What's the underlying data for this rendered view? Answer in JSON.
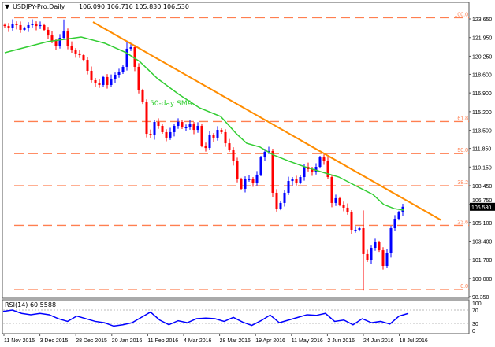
{
  "header": {
    "symbol": "USDJPY-Pro,Daily",
    "ohlc_text": "106.090 106.716 105.830 106.530"
  },
  "colors": {
    "bull": "#0000ff",
    "bear": "#ff0000",
    "fib": "#ff7f50",
    "trendline": "#ff8c00",
    "sma": "#32cd32",
    "rsi": "#0000ff"
  },
  "chart_data": [
    {
      "type": "candlestick",
      "title": "USDJPY-Pro,Daily",
      "current_price": "106.530",
      "ylim": [
        98.35,
        123.65
      ],
      "price_ticks": [
        "123.650",
        "121.950",
        "120.250",
        "118.600",
        "116.900",
        "115.200",
        "113.500",
        "111.850",
        "110.150",
        "108.450",
        "106.750",
        "105.100",
        "103.400",
        "101.700",
        "100.000",
        "98.350"
      ],
      "date_labels": [
        "11 Nov 2015",
        "3 Dec 2015",
        "28 Dec 2015",
        "20 Jan 2016",
        "11 Feb 2016",
        "4 Mar 2016",
        "28 Mar 2016",
        "19 Apr 2016",
        "11 May 2016",
        "2 Jun 2016",
        "24 Jun 2016",
        "18 Jul 2016"
      ],
      "closes": [
        123.0,
        122.79,
        123.22,
        123.08,
        122.65,
        122.79,
        123.08,
        123.22,
        123.0,
        123.08,
        122.65,
        122.14,
        121.64,
        121.21,
        121.93,
        122.5,
        121.21,
        120.78,
        120.5,
        120.35,
        119.92,
        118.92,
        118.06,
        117.84,
        117.63,
        118.35,
        117.63,
        118.2,
        118.56,
        118.78,
        119.28,
        120.93,
        121.07,
        119.28,
        117.13,
        116.05,
        113.18,
        113.04,
        114.26,
        113.9,
        113.33,
        112.83,
        113.33,
        113.9,
        114.26,
        113.76,
        113.76,
        114.04,
        113.54,
        113.9,
        112.11,
        111.89,
        113.04,
        112.83,
        113.54,
        113.33,
        112.32,
        111.75,
        110.68,
        109.03,
        108.17,
        109.03,
        109.03,
        108.74,
        109.46,
        111.03,
        111.54,
        111.61,
        107.81,
        106.37,
        106.88,
        107.81,
        108.88,
        109.03,
        108.74,
        109.24,
        110.17,
        109.96,
        109.74,
        110.17,
        111.03,
        110.68,
        109.24,
        106.88,
        107.31,
        106.73,
        106.45,
        106.02,
        104.44,
        104.44,
        104.58,
        102.22,
        101.71,
        102.79,
        103.29,
        102.57,
        101.14,
        102.29,
        104.58,
        105.44,
        106.02,
        106.53
      ],
      "wick_overrides": [
        {
          "index": 15,
          "high": 123.6
        },
        {
          "index": 31,
          "high": 121.6
        },
        {
          "index": 91,
          "high": 106.2,
          "low": 98.9
        }
      ],
      "sma": {
        "label": "50-day SMA",
        "points": [
          [
            0,
            120.57
          ],
          [
            10.8,
            121.57
          ],
          [
            19.4,
            122.0
          ],
          [
            25.4,
            121.43
          ],
          [
            30.8,
            120.57
          ],
          [
            34.2,
            119.78
          ],
          [
            38.8,
            118.2
          ],
          [
            44.2,
            116.77
          ],
          [
            49.4,
            115.55
          ],
          [
            54.8,
            114.76
          ],
          [
            58.8,
            113.18
          ],
          [
            61.4,
            112.32
          ],
          [
            64.8,
            111.97
          ],
          [
            68.2,
            111.25
          ],
          [
            72.2,
            110.68
          ],
          [
            76.2,
            110.17
          ],
          [
            81.4,
            109.6
          ],
          [
            84.8,
            109.24
          ],
          [
            89.4,
            108.38
          ],
          [
            93.4,
            107.66
          ],
          [
            96.2,
            106.73
          ],
          [
            98.8,
            106.37
          ],
          [
            101.2,
            106.23
          ]
        ]
      },
      "trendline": {
        "points": [
          [
            22.4,
            123.36
          ],
          [
            110.8,
            105.3
          ]
        ]
      },
      "fibonacci": {
        "high": 123.76,
        "low": 98.99,
        "levels": [
          {
            "ratio": 1.0,
            "label": "100.0"
          },
          {
            "ratio": 0.618,
            "label": "61.8"
          },
          {
            "ratio": 0.5,
            "label": "50.0"
          },
          {
            "ratio": 0.382,
            "label": "38.2"
          },
          {
            "ratio": 0.236,
            "label": "23.6"
          },
          {
            "ratio": 0.0,
            "label": "0.0"
          }
        ]
      }
    },
    {
      "type": "line",
      "title": "RSI(14) 60.5588",
      "ylim": [
        0,
        100
      ],
      "levels": [
        "100",
        "70",
        "30",
        "0"
      ],
      "level_lines": [
        70,
        30
      ],
      "values": [
        66,
        70,
        60,
        56,
        60,
        56,
        44,
        36,
        52,
        44,
        36,
        32,
        22,
        26,
        32,
        48,
        64,
        40,
        26,
        38,
        32,
        44,
        46,
        44,
        36,
        48,
        34,
        24,
        38,
        55,
        32,
        40,
        48,
        56,
        54,
        60,
        36,
        40,
        26,
        44,
        32,
        36,
        28,
        52,
        60
      ]
    }
  ]
}
